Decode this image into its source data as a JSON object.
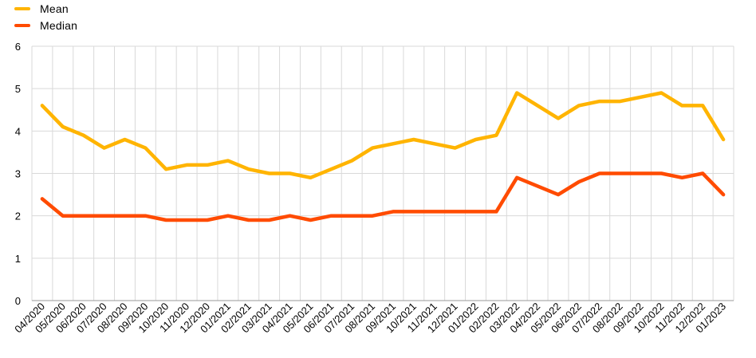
{
  "chart_data": {
    "type": "line",
    "title": "",
    "xlabel": "",
    "ylabel": "",
    "ylim": [
      0,
      6
    ],
    "yticks": [
      "0",
      "1",
      "2",
      "3",
      "4",
      "5",
      "6"
    ],
    "grid": true,
    "legend_position": "top-left",
    "categories": [
      "04/2020",
      "05/2020",
      "06/2020",
      "07/2020",
      "08/2020",
      "09/2020",
      "10/2020",
      "11/2020",
      "12/2020",
      "01/2021",
      "02/2021",
      "03/2021",
      "04/2021",
      "05/2021",
      "06/2021",
      "07/2021",
      "08/2021",
      "09/2021",
      "10/2021",
      "11/2021",
      "12/2021",
      "01/2022",
      "02/2022",
      "03/2022",
      "04/2022",
      "05/2022",
      "06/2022",
      "07/2022",
      "08/2022",
      "09/2022",
      "10/2022",
      "11/2022",
      "12/2022",
      "01/2023"
    ],
    "series": [
      {
        "name": "Mean",
        "color": "#FFB400",
        "values": [
          4.6,
          4.1,
          3.9,
          3.6,
          3.8,
          3.6,
          3.1,
          3.2,
          3.2,
          3.3,
          3.1,
          3.0,
          3.0,
          2.9,
          3.1,
          3.3,
          3.6,
          3.7,
          3.8,
          3.7,
          3.6,
          3.8,
          3.9,
          4.9,
          4.6,
          4.3,
          4.6,
          4.7,
          4.7,
          4.8,
          4.9,
          4.6,
          4.6,
          3.8
        ]
      },
      {
        "name": "Median",
        "color": "#FF4B00",
        "values": [
          2.4,
          2.0,
          2.0,
          2.0,
          2.0,
          2.0,
          1.9,
          1.9,
          1.9,
          2.0,
          1.9,
          1.9,
          2.0,
          1.9,
          2.0,
          2.0,
          2.0,
          2.1,
          2.1,
          2.1,
          2.1,
          2.1,
          2.1,
          2.9,
          2.7,
          2.5,
          2.8,
          3.0,
          3.0,
          3.0,
          3.0,
          2.9,
          3.0,
          2.5
        ]
      }
    ]
  }
}
